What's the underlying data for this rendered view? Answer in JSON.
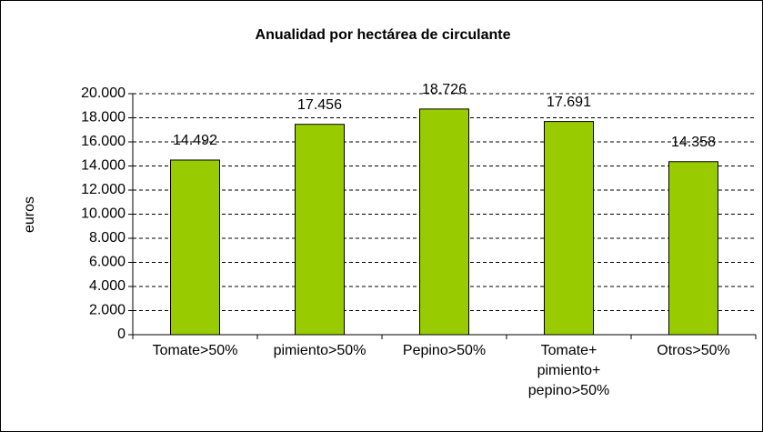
{
  "chart_data": {
    "type": "bar",
    "title": "Anualidad por hectárea de circulante",
    "ylabel": "euros",
    "categories": [
      "Tomate>50%",
      "pimiento>50%",
      "Pepino>50%",
      "Tomate+\npimiento+\npepino>50%",
      "Otros>50%"
    ],
    "values": [
      14492,
      17456,
      18726,
      17691,
      14358
    ],
    "value_labels": [
      "14.492",
      "17.456",
      "18.726",
      "17.691",
      "14.358"
    ],
    "color": "#99cc00",
    "ylim": [
      0,
      20000
    ],
    "yticks": [
      0,
      {
        "value": 2000,
        "label": "2.000"
      },
      {
        "value": 4000,
        "label": "4.000"
      },
      {
        "value": 6000,
        "label": "6.000"
      },
      {
        "value": 8000,
        "label": "8.000"
      },
      {
        "value": 10000,
        "label": "10.000"
      },
      {
        "value": 12000,
        "label": "12.000"
      },
      {
        "value": 14000,
        "label": "14.000"
      },
      {
        "value": 16000,
        "label": "16.000"
      },
      {
        "value": 18000,
        "label": "18.000"
      },
      {
        "value": 20000,
        "label": "20.000"
      }
    ],
    "grid": true
  }
}
